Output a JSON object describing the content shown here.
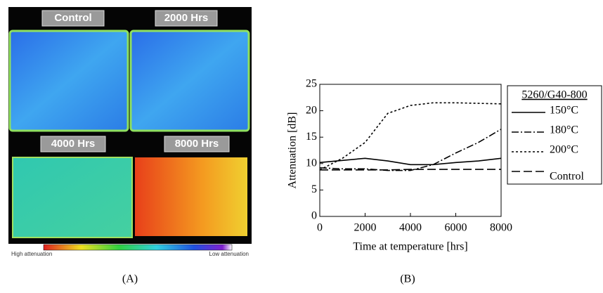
{
  "panel_a": {
    "labels": [
      "Control",
      "2000 Hrs",
      "4000 Hrs",
      "8000 Hrs"
    ],
    "scale_left": "High attenuation",
    "scale_right": "Low attenuation",
    "caption": "(A)"
  },
  "panel_b": {
    "caption": "(B)"
  },
  "chart_data": {
    "type": "line",
    "x_label": "Time at temperature [hrs]",
    "y_label": "Attenuation [dB]",
    "legend_title": "5260/G40-800",
    "legend": "right",
    "x": [
      0,
      1000,
      2000,
      3000,
      4000,
      5000,
      6000,
      7000,
      8000
    ],
    "series": [
      {
        "name": "150°C",
        "color": "#000000",
        "dash": "solid",
        "values": [
          10.2,
          10.6,
          11,
          10.5,
          9.8,
          9.8,
          10.2,
          10.5,
          11
        ]
      },
      {
        "name": "180°C",
        "color": "#000000",
        "dash": "dashdot",
        "values": [
          9.2,
          9,
          9,
          8.7,
          8.7,
          9.8,
          12,
          14,
          16.5
        ]
      },
      {
        "name": "200°C",
        "color": "#000000",
        "dash": "dotted",
        "values": [
          8.8,
          11,
          14,
          19.5,
          21,
          21.5,
          21.5,
          21.4,
          21.3
        ]
      },
      {
        "name": "Control",
        "color": "#000000",
        "dash": "dashed",
        "values": [
          8.8,
          8.8,
          8.8,
          8.8,
          8.9,
          8.9,
          8.9,
          8.9,
          8.9
        ]
      }
    ],
    "xlim": [
      0,
      8000
    ],
    "xticks": [
      0,
      2000,
      4000,
      6000,
      8000
    ],
    "ylim": [
      0,
      25
    ],
    "yticks": [
      0,
      5,
      10,
      15,
      20,
      25
    ]
  }
}
